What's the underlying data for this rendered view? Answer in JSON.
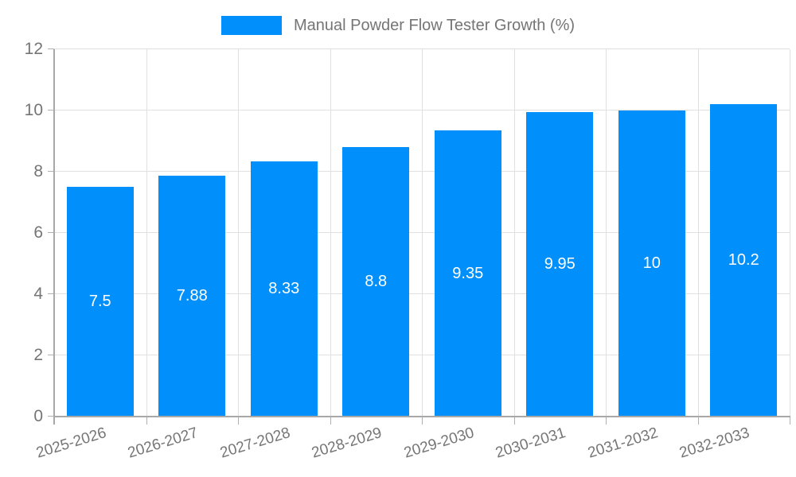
{
  "chart_data": {
    "type": "bar",
    "title": "Manual Powder Flow Tester Growth (%)",
    "categories": [
      "2025-2026",
      "2026-2027",
      "2027-2028",
      "2028-2029",
      "2029-2030",
      "2030-2031",
      "2031-2032",
      "2032-2033"
    ],
    "values": [
      7.5,
      7.88,
      8.33,
      8.8,
      9.35,
      9.95,
      10,
      10.2
    ],
    "value_labels": [
      "7.5",
      "7.88",
      "8.33",
      "8.8",
      "9.35",
      "9.95",
      "10",
      "10.2"
    ],
    "xlabel": "",
    "ylabel": "",
    "ylim": [
      0,
      12
    ],
    "yticks": [
      0,
      2,
      4,
      6,
      8,
      10,
      12
    ],
    "grid": true,
    "legend_position": "top",
    "colors": {
      "bar": "#008FFB",
      "bar_label": "#ffffff",
      "axis_text": "#757575",
      "grid_line": "#e0e0e0",
      "axis_line": "#a8a8a8",
      "legend_text": "#757575"
    }
  }
}
